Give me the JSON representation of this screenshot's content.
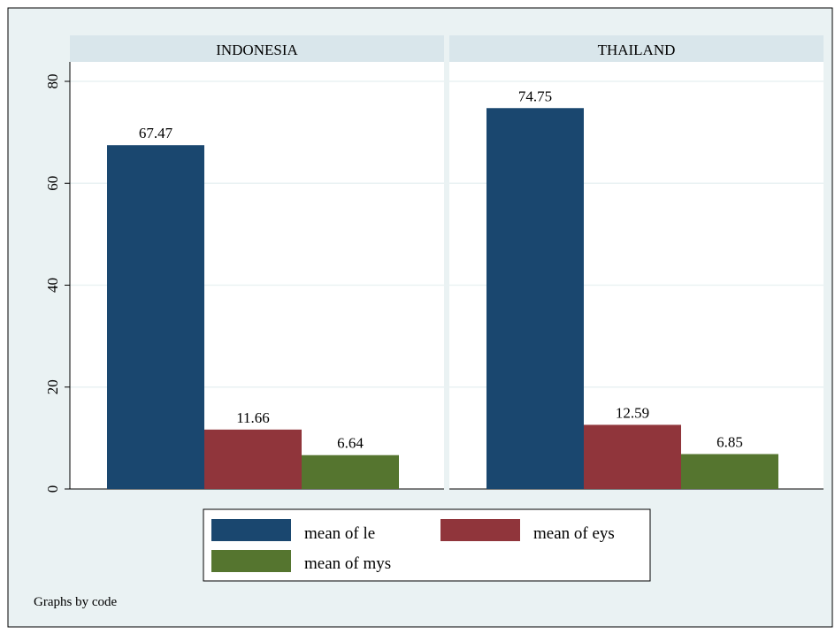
{
  "chart_data": {
    "type": "bar",
    "panels": [
      {
        "title": "INDONESIA",
        "series": [
          {
            "name": "mean of le",
            "value": 67.47,
            "label": "67.47"
          },
          {
            "name": "mean of eys",
            "value": 11.66,
            "label": "11.66"
          },
          {
            "name": "mean of mys",
            "value": 6.64,
            "label": "6.64"
          }
        ]
      },
      {
        "title": "THAILAND",
        "series": [
          {
            "name": "mean of le",
            "value": 74.75,
            "label": "74.75"
          },
          {
            "name": "mean of eys",
            "value": 12.59,
            "label": "12.59"
          },
          {
            "name": "mean of mys",
            "value": 6.85,
            "label": "6.85"
          }
        ]
      }
    ],
    "series_names": [
      "mean of le",
      "mean of eys",
      "mean of mys"
    ],
    "colors": [
      "#1a476f",
      "#90353b",
      "#55752f"
    ],
    "ylim": [
      0,
      80
    ],
    "yticks": [
      0,
      20,
      40,
      60,
      80
    ],
    "ytick_labels": [
      "0",
      "20",
      "40",
      "60",
      "80"
    ],
    "grid": true,
    "legend_position": "bottom",
    "note": "Graphs by code"
  },
  "style": {
    "outer_background": "#eaf2f3",
    "plot_background": "#ffffff",
    "panel_header_background": "#d9e6eb",
    "grid_color": "#eaf2f3"
  }
}
